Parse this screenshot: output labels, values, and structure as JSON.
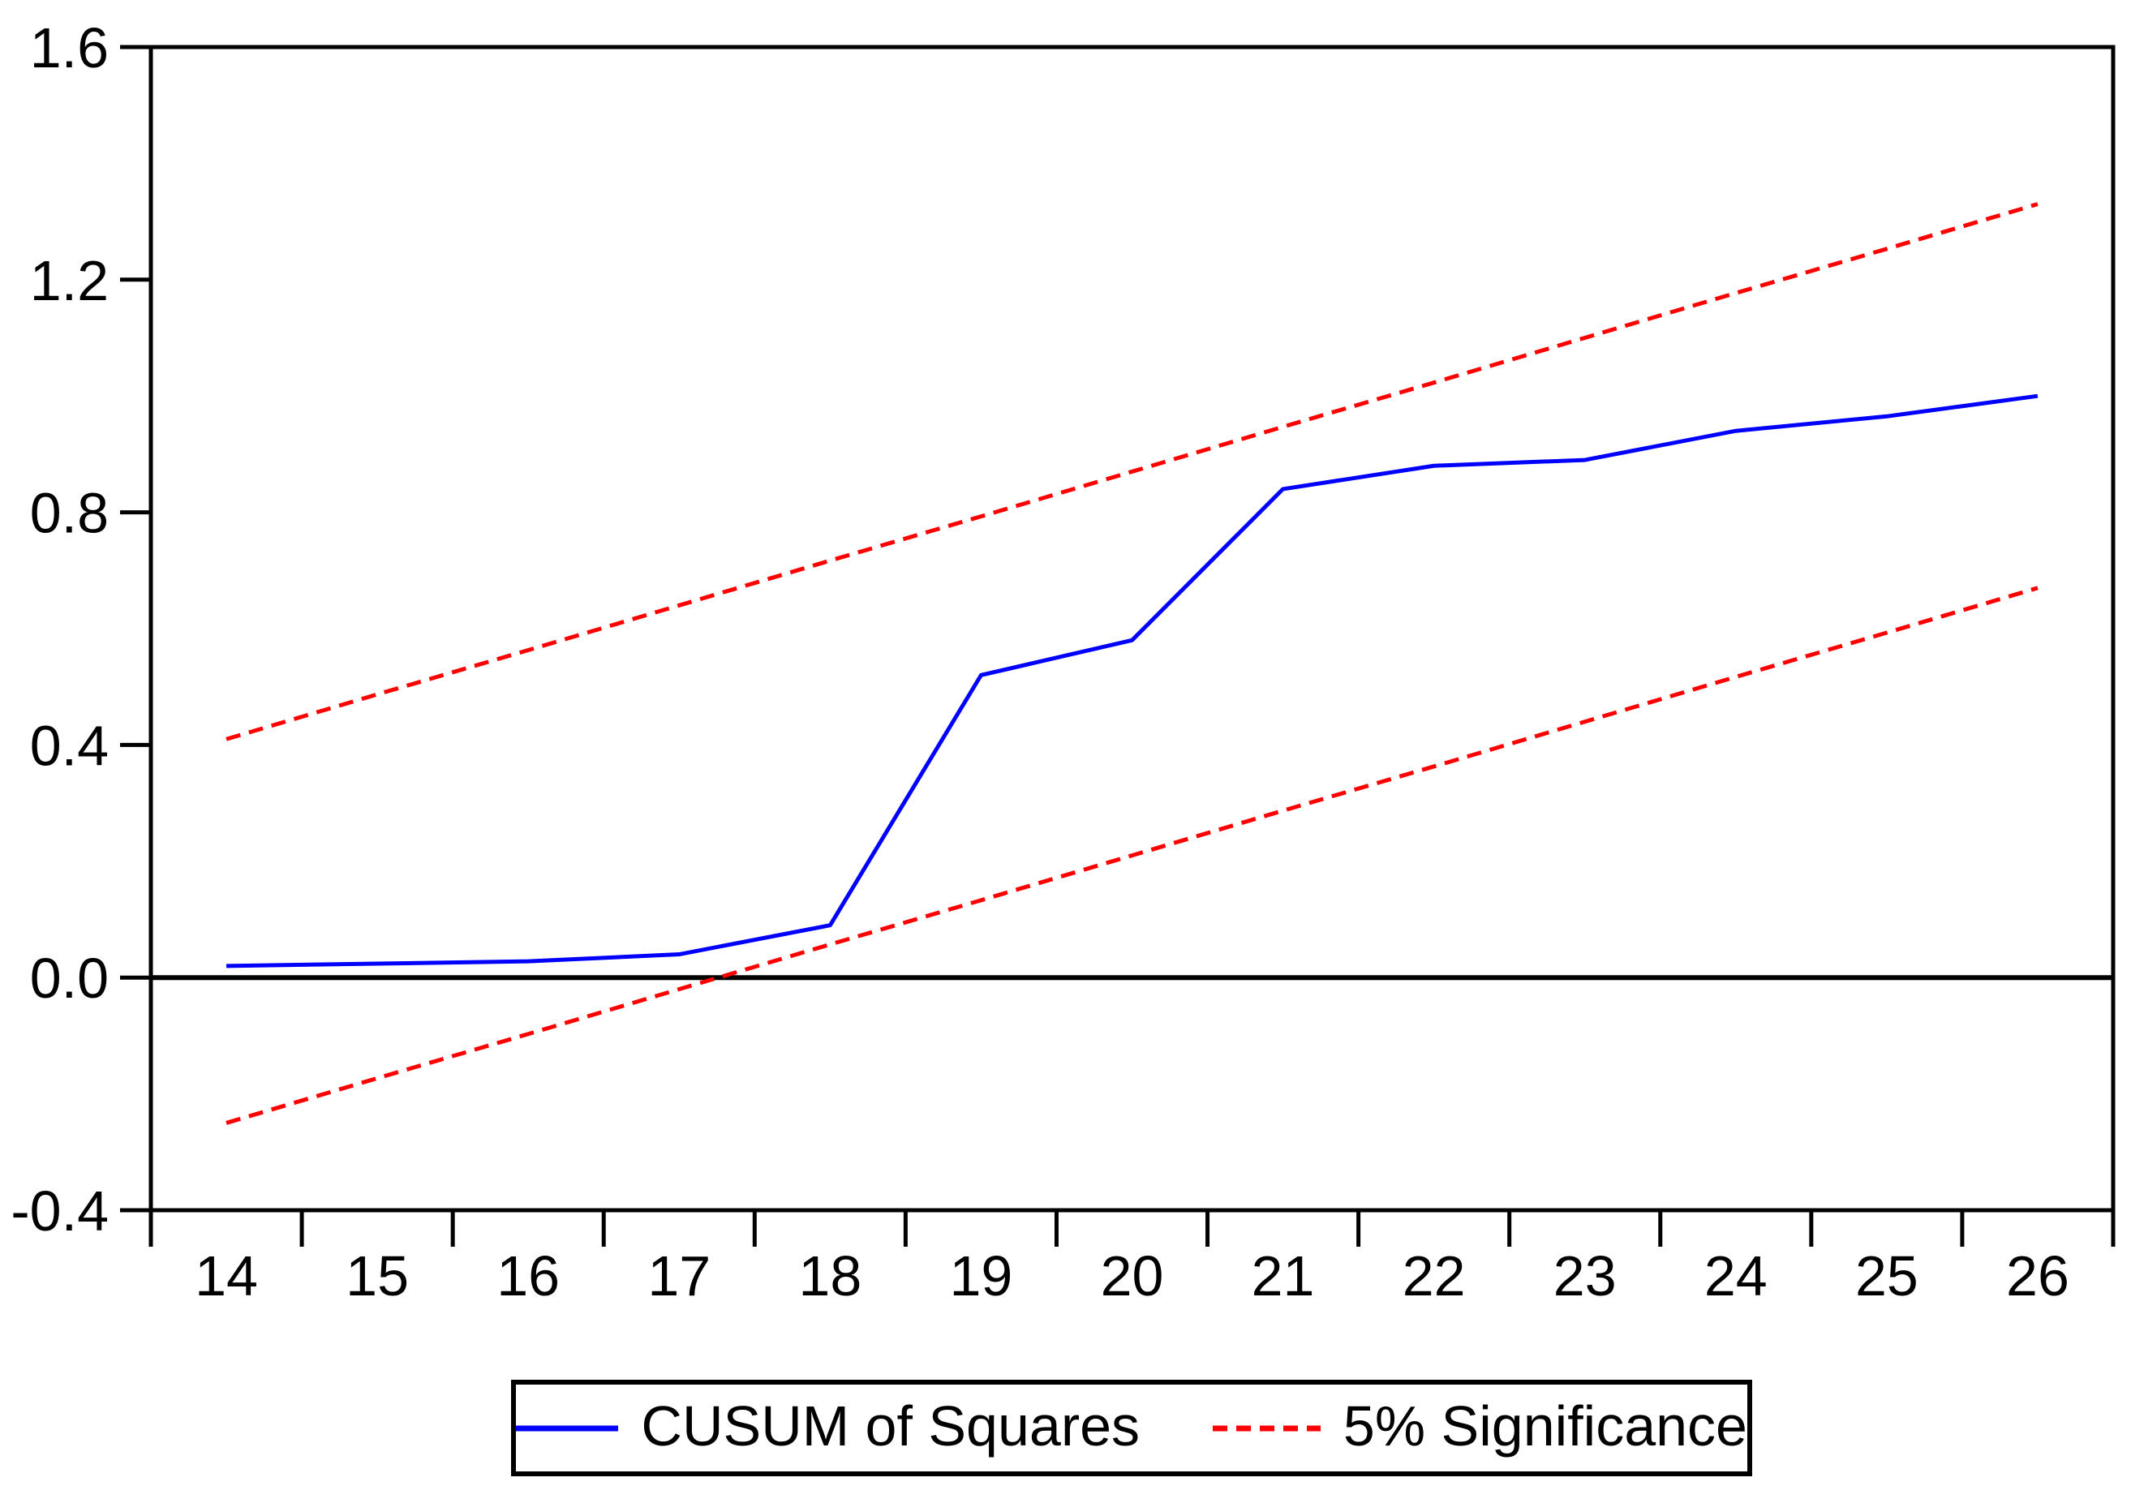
{
  "chart_data": {
    "type": "line",
    "title": "",
    "xlabel": "",
    "ylabel": "",
    "x": [
      14,
      15,
      16,
      17,
      18,
      19,
      20,
      21,
      22,
      23,
      24,
      25,
      26
    ],
    "xlim": [
      13.5,
      26.5
    ],
    "ylim": [
      -0.4,
      1.6
    ],
    "yticks": [
      1.6,
      1.2,
      0.8,
      0.4,
      0.0,
      -0.4
    ],
    "ytick_labels": [
      "1.6",
      "1.2",
      "0.8",
      "0.4",
      "0.0",
      "-0.4"
    ],
    "xtick_labels": [
      "14",
      "15",
      "16",
      "17",
      "18",
      "19",
      "20",
      "21",
      "22",
      "23",
      "24",
      "25",
      "26"
    ],
    "grid": false,
    "zero_line": true,
    "legend_position": "bottom-center",
    "series": [
      {
        "name": "CUSUM of Squares",
        "color": "#0000ff",
        "line_style": "solid",
        "values": [
          0.02,
          0.024,
          0.028,
          0.04,
          0.09,
          0.52,
          0.58,
          0.84,
          0.88,
          0.89,
          0.94,
          0.965,
          1.0
        ]
      },
      {
        "name": "5% Significance (upper band)",
        "color": "#ff0000",
        "line_style": "dashed",
        "values": [
          0.41,
          0.487,
          0.563,
          0.64,
          0.717,
          0.793,
          0.87,
          0.947,
          1.023,
          1.1,
          1.177,
          1.253,
          1.33
        ]
      },
      {
        "name": "5% Significance (lower band)",
        "color": "#ff0000",
        "line_style": "dashed",
        "values": [
          -0.25,
          -0.173,
          -0.097,
          -0.02,
          0.057,
          0.133,
          0.21,
          0.287,
          0.363,
          0.44,
          0.517,
          0.593,
          0.67
        ]
      }
    ]
  },
  "legend": {
    "entries": [
      {
        "label": "CUSUM of Squares",
        "color": "#0000ff",
        "line_style": "solid"
      },
      {
        "label": "5% Significance",
        "color": "#ff0000",
        "line_style": "dashed"
      }
    ]
  },
  "colors": {
    "cusum_line": "#0000ff",
    "significance_line": "#ff0000",
    "axis": "#000000",
    "background": "#ffffff"
  }
}
